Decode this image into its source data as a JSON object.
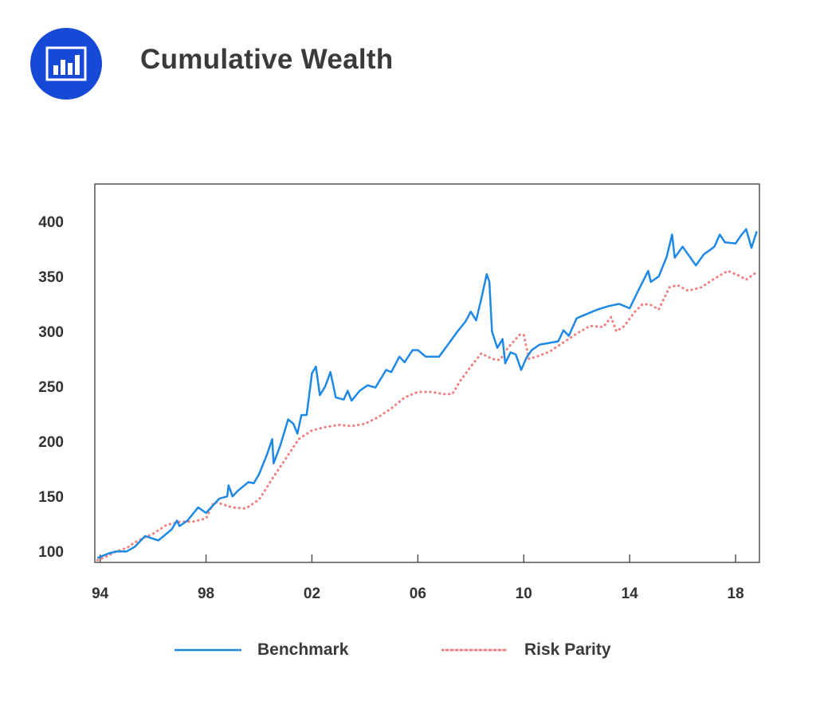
{
  "header": {
    "title": "Cumulative Wealth",
    "icon": "bar-chart-icon",
    "icon_bg": "#1549d6"
  },
  "chart_data": {
    "type": "line",
    "title": "Cumulative Wealth",
    "xlabel": "",
    "ylabel": "",
    "xlim": [
      1993.8,
      2018.9
    ],
    "ylim": [
      90,
      434
    ],
    "x_ticks": [
      1994,
      1998,
      2002,
      2006,
      2010,
      2014,
      2018
    ],
    "x_tick_labels": [
      "94",
      "98",
      "02",
      "06",
      "10",
      "14",
      "18"
    ],
    "y_ticks": [
      100,
      150,
      200,
      250,
      300,
      350,
      400
    ],
    "y_tick_labels": [
      "100",
      "150",
      "200",
      "250",
      "300",
      "350",
      "400"
    ],
    "grid": false,
    "legend_position": "bottom",
    "series": [
      {
        "name": "Benchmark",
        "color": "#1e88e5",
        "style": "solid",
        "points": [
          [
            1993.9,
            94
          ],
          [
            1994.3,
            98
          ],
          [
            1994.6,
            100
          ],
          [
            1995.0,
            100
          ],
          [
            1995.3,
            104
          ],
          [
            1995.7,
            114
          ],
          [
            1996.2,
            110
          ],
          [
            1996.7,
            120
          ],
          [
            1996.9,
            128
          ],
          [
            1997.0,
            123
          ],
          [
            1997.3,
            128
          ],
          [
            1997.7,
            140
          ],
          [
            1998.0,
            135
          ],
          [
            1998.5,
            148
          ],
          [
            1998.8,
            150
          ],
          [
            1998.85,
            160
          ],
          [
            1999.0,
            150
          ],
          [
            1999.2,
            155
          ],
          [
            1999.6,
            163
          ],
          [
            1999.8,
            162
          ],
          [
            2000.0,
            170
          ],
          [
            2000.3,
            188
          ],
          [
            2000.5,
            202
          ],
          [
            2000.55,
            180
          ],
          [
            2000.8,
            196
          ],
          [
            2001.1,
            220
          ],
          [
            2001.3,
            216
          ],
          [
            2001.45,
            207
          ],
          [
            2001.6,
            224
          ],
          [
            2001.8,
            224
          ],
          [
            2002.0,
            262
          ],
          [
            2002.15,
            268
          ],
          [
            2002.3,
            242
          ],
          [
            2002.5,
            250
          ],
          [
            2002.7,
            263
          ],
          [
            2002.9,
            240
          ],
          [
            2003.2,
            238
          ],
          [
            2003.35,
            246
          ],
          [
            2003.5,
            237
          ],
          [
            2003.8,
            246
          ],
          [
            2004.1,
            251
          ],
          [
            2004.4,
            249
          ],
          [
            2004.8,
            265
          ],
          [
            2005.0,
            263
          ],
          [
            2005.3,
            277
          ],
          [
            2005.5,
            272
          ],
          [
            2005.8,
            283
          ],
          [
            2006.0,
            283
          ],
          [
            2006.3,
            277
          ],
          [
            2006.8,
            277
          ],
          [
            2007.2,
            290
          ],
          [
            2007.5,
            300
          ],
          [
            2007.8,
            309
          ],
          [
            2008.0,
            318
          ],
          [
            2008.2,
            310
          ],
          [
            2008.4,
            330
          ],
          [
            2008.6,
            352
          ],
          [
            2008.7,
            345
          ],
          [
            2008.8,
            300
          ],
          [
            2009.0,
            285
          ],
          [
            2009.2,
            293
          ],
          [
            2009.3,
            271
          ],
          [
            2009.5,
            281
          ],
          [
            2009.7,
            279
          ],
          [
            2009.9,
            265
          ],
          [
            2010.1,
            276
          ],
          [
            2010.3,
            283
          ],
          [
            2010.6,
            288
          ],
          [
            2011.3,
            291
          ],
          [
            2011.5,
            301
          ],
          [
            2011.7,
            296
          ],
          [
            2012.0,
            312
          ],
          [
            2012.3,
            315
          ],
          [
            2012.8,
            320
          ],
          [
            2013.2,
            323
          ],
          [
            2013.6,
            325
          ],
          [
            2014.0,
            321
          ],
          [
            2014.3,
            336
          ],
          [
            2014.7,
            355
          ],
          [
            2014.8,
            345
          ],
          [
            2015.1,
            350
          ],
          [
            2015.4,
            368
          ],
          [
            2015.6,
            388
          ],
          [
            2015.7,
            367
          ],
          [
            2016.0,
            377
          ],
          [
            2016.5,
            360
          ],
          [
            2016.8,
            370
          ],
          [
            2017.2,
            377
          ],
          [
            2017.4,
            388
          ],
          [
            2017.6,
            381
          ],
          [
            2018.0,
            380
          ],
          [
            2018.2,
            387
          ],
          [
            2018.4,
            393
          ],
          [
            2018.6,
            376
          ],
          [
            2018.8,
            391
          ]
        ]
      },
      {
        "name": "Risk Parity",
        "color": "#f08080",
        "style": "dotted",
        "points": [
          [
            1993.9,
            92
          ],
          [
            1994.3,
            96
          ],
          [
            1994.6,
            100
          ],
          [
            1995.0,
            103
          ],
          [
            1995.3,
            108
          ],
          [
            1995.7,
            113
          ],
          [
            1996.0,
            116
          ],
          [
            1996.5,
            124
          ],
          [
            1997.0,
            127
          ],
          [
            1997.5,
            127
          ],
          [
            1998.0,
            130
          ],
          [
            1998.3,
            145
          ],
          [
            1998.6,
            143
          ],
          [
            1999.0,
            140
          ],
          [
            1999.5,
            139
          ],
          [
            2000.0,
            147
          ],
          [
            2000.5,
            166
          ],
          [
            2001.0,
            184
          ],
          [
            2001.5,
            202
          ],
          [
            2002.0,
            210
          ],
          [
            2002.5,
            213
          ],
          [
            2003.0,
            215
          ],
          [
            2003.5,
            214
          ],
          [
            2004.0,
            216
          ],
          [
            2004.5,
            222
          ],
          [
            2005.0,
            230
          ],
          [
            2005.5,
            240
          ],
          [
            2006.0,
            245
          ],
          [
            2006.5,
            245
          ],
          [
            2007.0,
            243
          ],
          [
            2007.3,
            243
          ],
          [
            2007.6,
            255
          ],
          [
            2008.0,
            268
          ],
          [
            2008.4,
            280
          ],
          [
            2008.8,
            275
          ],
          [
            2009.1,
            274
          ],
          [
            2009.4,
            285
          ],
          [
            2009.7,
            293
          ],
          [
            2009.85,
            297
          ],
          [
            2010.0,
            297
          ],
          [
            2010.2,
            275
          ],
          [
            2010.6,
            278
          ],
          [
            2011.0,
            282
          ],
          [
            2011.5,
            290
          ],
          [
            2012.0,
            298
          ],
          [
            2012.5,
            305
          ],
          [
            2013.0,
            304
          ],
          [
            2013.3,
            313
          ],
          [
            2013.5,
            300
          ],
          [
            2013.8,
            305
          ],
          [
            2014.2,
            318
          ],
          [
            2014.5,
            325
          ],
          [
            2014.8,
            324
          ],
          [
            2015.1,
            320
          ],
          [
            2015.5,
            340
          ],
          [
            2015.8,
            342
          ],
          [
            2016.2,
            337
          ],
          [
            2016.7,
            340
          ],
          [
            2017.2,
            348
          ],
          [
            2017.7,
            355
          ],
          [
            2018.1,
            351
          ],
          [
            2018.4,
            347
          ],
          [
            2018.8,
            354
          ]
        ]
      }
    ]
  },
  "legend": [
    {
      "label": "Benchmark",
      "color": "#1e88e5",
      "style": "solid"
    },
    {
      "label": "Risk Parity",
      "color": "#f08080",
      "style": "dotted"
    }
  ]
}
